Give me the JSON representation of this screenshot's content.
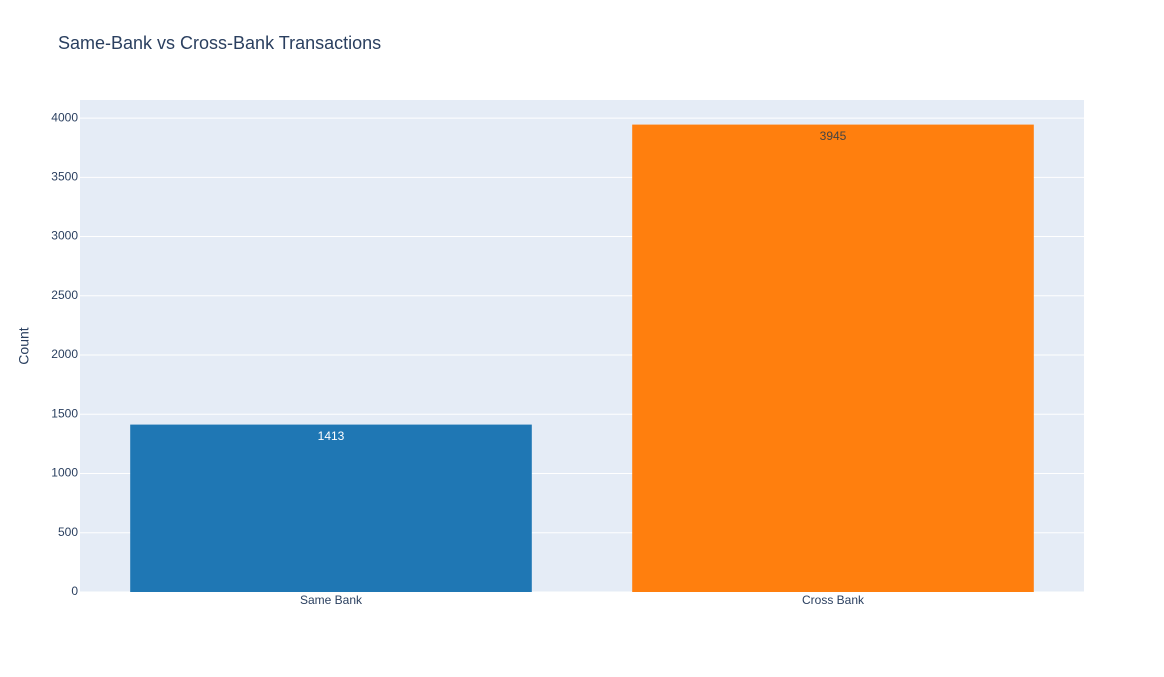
{
  "chart_data": {
    "type": "bar",
    "title": "Same-Bank vs Cross-Bank Transactions",
    "y_label": "Count",
    "categories": [
      "Same Bank",
      "Cross Bank"
    ],
    "values": [
      1413,
      3945
    ],
    "colors": [
      "#1f77b4",
      "#ff7f0e"
    ],
    "ylim": [
      0,
      4152.6
    ],
    "yticks": [
      0,
      500,
      1000,
      1500,
      2000,
      2500,
      3000,
      3500,
      4000
    ],
    "grid": true
  }
}
